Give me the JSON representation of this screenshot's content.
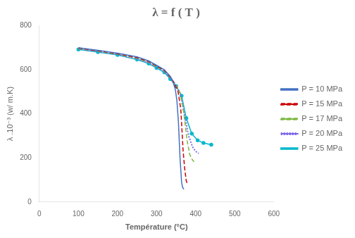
{
  "chart_data": {
    "type": "line",
    "title": "λ = f ( T )",
    "x_label": "Température (°C)",
    "y_label": "λ .10⁻³ (w/ m.K)",
    "xlim": [
      0,
      600
    ],
    "ylim": [
      0,
      800
    ],
    "xticks": [
      0,
      100,
      200,
      300,
      400,
      500,
      600
    ],
    "yticks": [
      0,
      200,
      400,
      600,
      800
    ],
    "grid": false,
    "legend": "right",
    "series": [
      {
        "name": "P = 10 MPa",
        "color": "#4472C4",
        "line_style": "solid",
        "marker": "none",
        "x": [
          100,
          150,
          200,
          250,
          280,
          300,
          320,
          335,
          342,
          348,
          352,
          356,
          360,
          364,
          366,
          368,
          370
        ],
        "values": [
          700,
          688,
          675,
          658,
          640,
          620,
          600,
          570,
          545,
          510,
          460,
          360,
          200,
          90,
          70,
          62,
          58
        ]
      },
      {
        "name": "P = 15 MPa",
        "color": "#CC0000",
        "line_style": "dashed",
        "marker": "none",
        "x": [
          100,
          150,
          200,
          250,
          280,
          300,
          320,
          335,
          345,
          355,
          362,
          368,
          372,
          376,
          380
        ],
        "values": [
          698,
          686,
          673,
          655,
          637,
          617,
          597,
          567,
          540,
          500,
          420,
          230,
          150,
          95,
          78
        ]
      },
      {
        "name": "P = 17 MPa",
        "color": "#7DB843",
        "line_style": "dashed",
        "marker": "none",
        "x": [
          100,
          150,
          200,
          250,
          280,
          300,
          320,
          335,
          348,
          360,
          370,
          378,
          385,
          392,
          396
        ],
        "values": [
          696,
          684,
          671,
          652,
          634,
          614,
          594,
          564,
          535,
          495,
          400,
          280,
          215,
          190,
          182
        ]
      },
      {
        "name": "P = 20 MPa",
        "color": "#7B68EE",
        "line_style": "dotted",
        "marker": "none",
        "x": [
          100,
          150,
          200,
          250,
          280,
          300,
          320,
          335,
          350,
          362,
          372,
          382,
          392,
          400,
          408
        ],
        "values": [
          694,
          682,
          669,
          649,
          631,
          611,
          591,
          561,
          530,
          488,
          390,
          300,
          250,
          230,
          220
        ]
      },
      {
        "name": "P = 25 MPa",
        "color": "#00B8CC",
        "line_style": "solid",
        "marker": "point",
        "x": [
          100,
          150,
          200,
          250,
          280,
          300,
          320,
          335,
          350,
          364,
          376,
          390,
          405,
          420,
          440
        ],
        "values": [
          692,
          680,
          667,
          646,
          628,
          608,
          588,
          558,
          526,
          482,
          380,
          310,
          280,
          268,
          260
        ]
      }
    ]
  }
}
